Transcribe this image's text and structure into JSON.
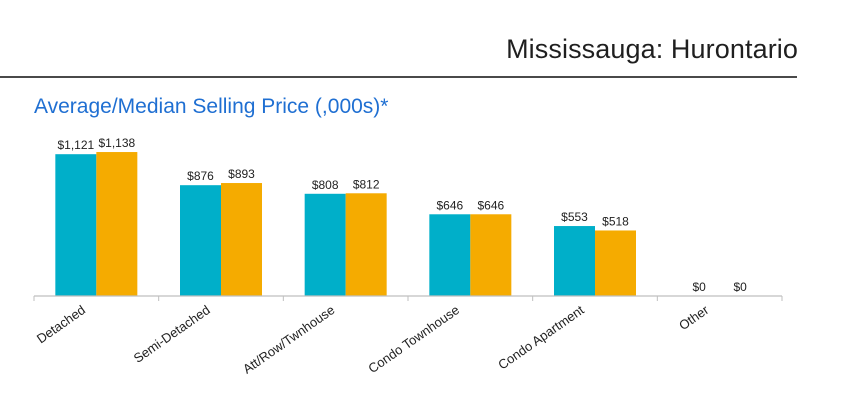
{
  "header": {
    "region_title": "Mississauga: Hurontario"
  },
  "colors": {
    "average": "#00afc9",
    "median": "#f5ab00",
    "axis": "#bfbfbf",
    "title": "#1f6fd2"
  },
  "chart_data": {
    "type": "bar",
    "title": "Average/Median Selling Price (,000s)*",
    "categories": [
      "Detached",
      "Semi-Detached",
      "Att/Row/Twnhouse",
      "Condo Townhouse",
      "Condo Apartment",
      "Other"
    ],
    "series": [
      {
        "name": "Average",
        "values": [
          1121,
          876,
          808,
          646,
          553,
          0
        ],
        "labels": [
          "$1,121",
          "$876",
          "$808",
          "$646",
          "$553",
          "$0"
        ]
      },
      {
        "name": "Median",
        "values": [
          1138,
          893,
          812,
          646,
          518,
          0
        ],
        "labels": [
          "$1,138",
          "$893",
          "$812",
          "$646",
          "$518",
          "$0"
        ]
      }
    ],
    "ylim": [
      0,
      1200
    ],
    "grid": false,
    "legend": "none"
  }
}
